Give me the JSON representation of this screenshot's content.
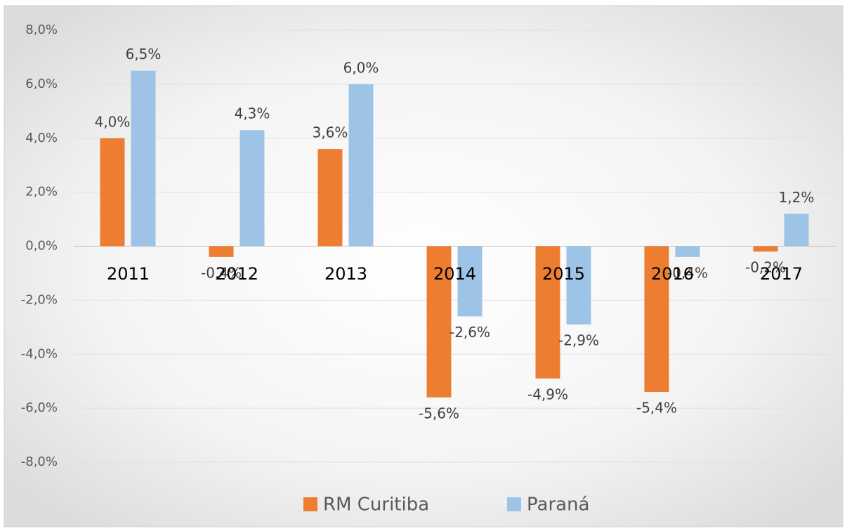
{
  "chart_data": {
    "type": "bar",
    "categories": [
      "2011",
      "2012",
      "2013",
      "2014",
      "2015",
      "2016",
      "2017"
    ],
    "series": [
      {
        "name": "RM Curitiba",
        "color": "#ed7d31",
        "values": [
          4.0,
          -0.4,
          3.6,
          -5.6,
          -4.9,
          -5.4,
          -0.2
        ],
        "value_labels": [
          "4,0%",
          "-0,4%",
          "3,6%",
          "-5,6%",
          "-4,9%",
          "-5,4%",
          "-0,2%"
        ]
      },
      {
        "name": "Paraná",
        "color": "#9dc3e6",
        "values": [
          6.5,
          4.3,
          6.0,
          -2.6,
          -2.9,
          -0.4,
          1.2
        ],
        "value_labels": [
          "6,5%",
          "4,3%",
          "6,0%",
          "-2,6%",
          "-2,9%",
          "-0,4%",
          "1,2%"
        ]
      }
    ],
    "ylim": [
      -8,
      8
    ],
    "yticks": [
      {
        "value": -8,
        "label": "-8,0%"
      },
      {
        "value": -6,
        "label": "-6,0%"
      },
      {
        "value": -4,
        "label": "-4,0%"
      },
      {
        "value": -2,
        "label": "-2,0%"
      },
      {
        "value": 0,
        "label": "0,0%"
      },
      {
        "value": 2,
        "label": "2,0%"
      },
      {
        "value": 4,
        "label": "4,0%"
      },
      {
        "value": 6,
        "label": "6,0%"
      },
      {
        "value": 8,
        "label": "8,0%"
      }
    ],
    "grid": true,
    "legend": "bottom"
  }
}
